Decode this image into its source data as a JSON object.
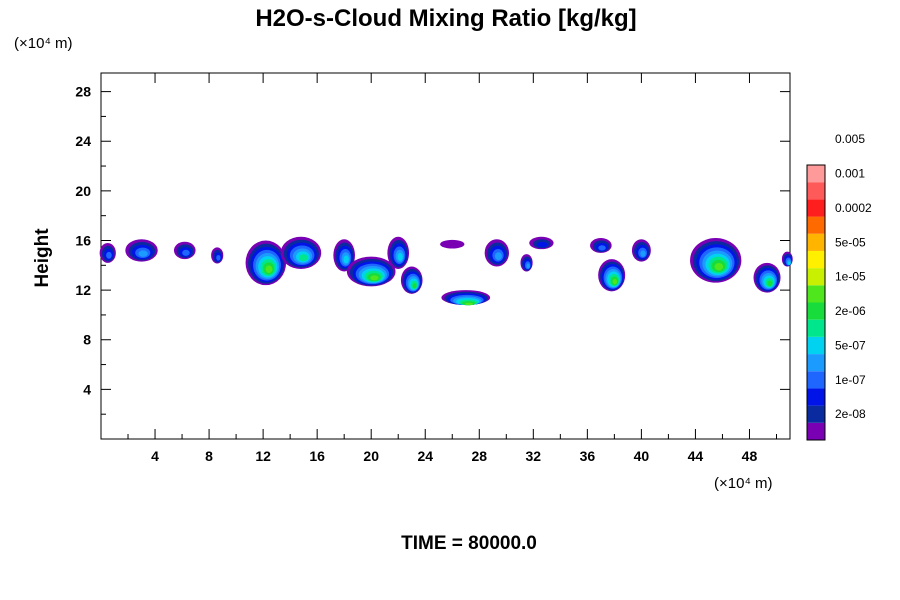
{
  "chart_data": {
    "type": "heatmap",
    "title": "H2O-s-Cloud Mixing Ratio [kg/kg]",
    "ylabel": "Height",
    "x_scale_label": "(×10⁴ m)",
    "y_scale_label": "(×10⁴ m)",
    "footer": "TIME = 80000.0",
    "xlim": [
      0,
      51
    ],
    "ylim": [
      0,
      29.5
    ],
    "x_ticks": [
      4,
      8,
      12,
      16,
      20,
      24,
      28,
      32,
      36,
      40,
      44,
      48
    ],
    "y_ticks": [
      4,
      8,
      12,
      16,
      20,
      24,
      28
    ],
    "colorbar": {
      "levels": [
        "2e-08",
        "1e-07",
        "5e-07",
        "2e-06",
        "1e-05",
        "5e-05",
        "0.0002",
        "0.001",
        "0.005"
      ],
      "colors": [
        "#7a00b4",
        "#0a2aa0",
        "#0014e8",
        "#1f66ff",
        "#1c9bff",
        "#00d2f0",
        "#00e68c",
        "#18dc3c",
        "#50e61e",
        "#c8f000",
        "#fff000",
        "#ffb400",
        "#ff6a00",
        "#ff1e1e",
        "#ff5a5a",
        "#ff9a9a"
      ]
    },
    "clouds": [
      {
        "x": 0.5,
        "y": 15.0,
        "w": 1.2,
        "h": 1.6,
        "level": 3
      },
      {
        "x": 3.0,
        "y": 15.2,
        "w": 2.4,
        "h": 1.8,
        "level": 4
      },
      {
        "x": 6.2,
        "y": 15.2,
        "w": 1.6,
        "h": 1.4,
        "level": 3
      },
      {
        "x": 8.6,
        "y": 14.8,
        "w": 0.9,
        "h": 1.3,
        "level": 3
      },
      {
        "x": 12.2,
        "y": 14.2,
        "w": 3.0,
        "h": 3.6,
        "level": 8
      },
      {
        "x": 14.8,
        "y": 15.0,
        "w": 3.0,
        "h": 2.6,
        "level": 6
      },
      {
        "x": 18.0,
        "y": 14.8,
        "w": 1.6,
        "h": 2.6,
        "level": 5
      },
      {
        "x": 20.0,
        "y": 13.5,
        "w": 3.6,
        "h": 2.4,
        "level": 8
      },
      {
        "x": 22.0,
        "y": 15.0,
        "w": 1.6,
        "h": 2.6,
        "level": 5
      },
      {
        "x": 23.0,
        "y": 12.8,
        "w": 1.6,
        "h": 2.2,
        "level": 7
      },
      {
        "x": 26.0,
        "y": 15.7,
        "w": 1.8,
        "h": 0.7,
        "level": 0
      },
      {
        "x": 27.0,
        "y": 11.4,
        "w": 3.6,
        "h": 1.2,
        "level": 8
      },
      {
        "x": 29.3,
        "y": 15.0,
        "w": 1.8,
        "h": 2.2,
        "level": 4
      },
      {
        "x": 31.5,
        "y": 14.2,
        "w": 0.9,
        "h": 1.4,
        "level": 4
      },
      {
        "x": 32.6,
        "y": 15.8,
        "w": 1.8,
        "h": 1.0,
        "level": 2
      },
      {
        "x": 37.0,
        "y": 15.6,
        "w": 1.6,
        "h": 1.2,
        "level": 3
      },
      {
        "x": 37.8,
        "y": 13.2,
        "w": 2.0,
        "h": 2.6,
        "level": 8
      },
      {
        "x": 40.0,
        "y": 15.2,
        "w": 1.4,
        "h": 1.8,
        "level": 4
      },
      {
        "x": 45.5,
        "y": 14.4,
        "w": 3.8,
        "h": 3.6,
        "level": 8
      },
      {
        "x": 49.3,
        "y": 13.0,
        "w": 2.0,
        "h": 2.4,
        "level": 7
      },
      {
        "x": 50.8,
        "y": 14.5,
        "w": 0.8,
        "h": 1.2,
        "level": 5
      }
    ]
  }
}
